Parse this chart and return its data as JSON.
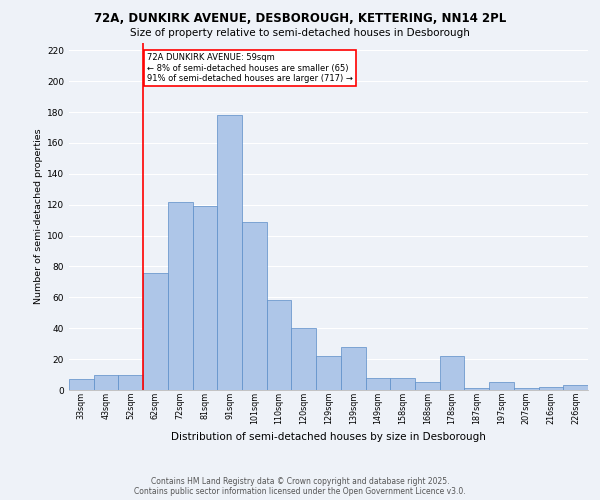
{
  "title1": "72A, DUNKIRK AVENUE, DESBOROUGH, KETTERING, NN14 2PL",
  "title2": "Size of property relative to semi-detached houses in Desborough",
  "xlabel": "Distribution of semi-detached houses by size in Desborough",
  "ylabel": "Number of semi-detached properties",
  "categories": [
    "33sqm",
    "43sqm",
    "52sqm",
    "62sqm",
    "72sqm",
    "81sqm",
    "91sqm",
    "101sqm",
    "110sqm",
    "120sqm",
    "129sqm",
    "139sqm",
    "149sqm",
    "158sqm",
    "168sqm",
    "178sqm",
    "187sqm",
    "197sqm",
    "207sqm",
    "216sqm",
    "226sqm"
  ],
  "values": [
    7,
    10,
    10,
    76,
    122,
    119,
    178,
    109,
    58,
    40,
    22,
    28,
    8,
    8,
    5,
    22,
    1,
    5,
    1,
    2,
    3
  ],
  "bar_color": "#aec6e8",
  "bar_edge_color": "#5b8dc8",
  "vline_x_idx": 2.5,
  "vline_color": "red",
  "annotation_title": "72A DUNKIRK AVENUE: 59sqm",
  "annotation_line1": "← 8% of semi-detached houses are smaller (65)",
  "annotation_line2": "91% of semi-detached houses are larger (717) →",
  "annotation_box_color": "white",
  "annotation_box_edge_color": "red",
  "ylim": [
    0,
    225
  ],
  "yticks": [
    0,
    20,
    40,
    60,
    80,
    100,
    120,
    140,
    160,
    180,
    200,
    220
  ],
  "bg_color": "#eef2f8",
  "grid_color": "white",
  "footer1": "Contains HM Land Registry data © Crown copyright and database right 2025.",
  "footer2": "Contains public sector information licensed under the Open Government Licence v3.0."
}
